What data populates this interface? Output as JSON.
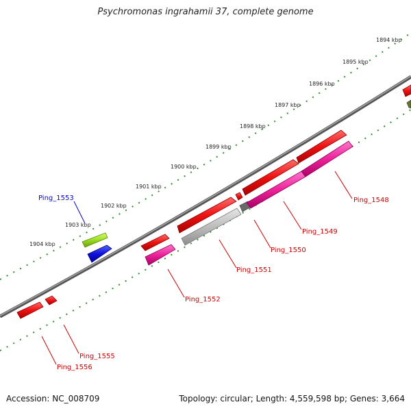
{
  "title": "Psychromonas ingrahamii 37, complete genome",
  "footer": {
    "accession_label": "Accession: NC_008709",
    "topology_label": "Topology: circular; Length: 4,559,598 bp; Genes: 3,664"
  },
  "ruler": {
    "ticks": [
      "1894 kbp",
      "1895 kbp",
      "1896 kbp",
      "1897 kbp",
      "1898 kbp",
      "1899 kbp",
      "1900 kbp",
      "1901 kbp",
      "1902 kbp",
      "1903 kbp",
      "1904 kbp"
    ]
  },
  "genes": [
    {
      "label": "Ping_1553",
      "color": "#0000cc"
    },
    {
      "label": "Ping_1548",
      "color": "#cc0000"
    },
    {
      "label": "Ping_1549",
      "color": "#cc0000"
    },
    {
      "label": "Ping_1550",
      "color": "#cc0000"
    },
    {
      "label": "Ping_1551",
      "color": "#cc0000"
    },
    {
      "label": "Ping_1552",
      "color": "#cc0000"
    },
    {
      "label": "Ping_1555",
      "color": "#cc0000"
    },
    {
      "label": "Ping_1556",
      "color": "#cc0000"
    }
  ],
  "colors": {
    "backbone": "#7a7a7a",
    "ruler_dots": "#2e8b2e",
    "cds_red": "#ee1111",
    "cds_pink": "#ee2299",
    "cds_gray": "#b8b8b8",
    "cds_lime": "#99dd22",
    "cds_blue": "#1111dd",
    "cds_olive": "#667722"
  }
}
